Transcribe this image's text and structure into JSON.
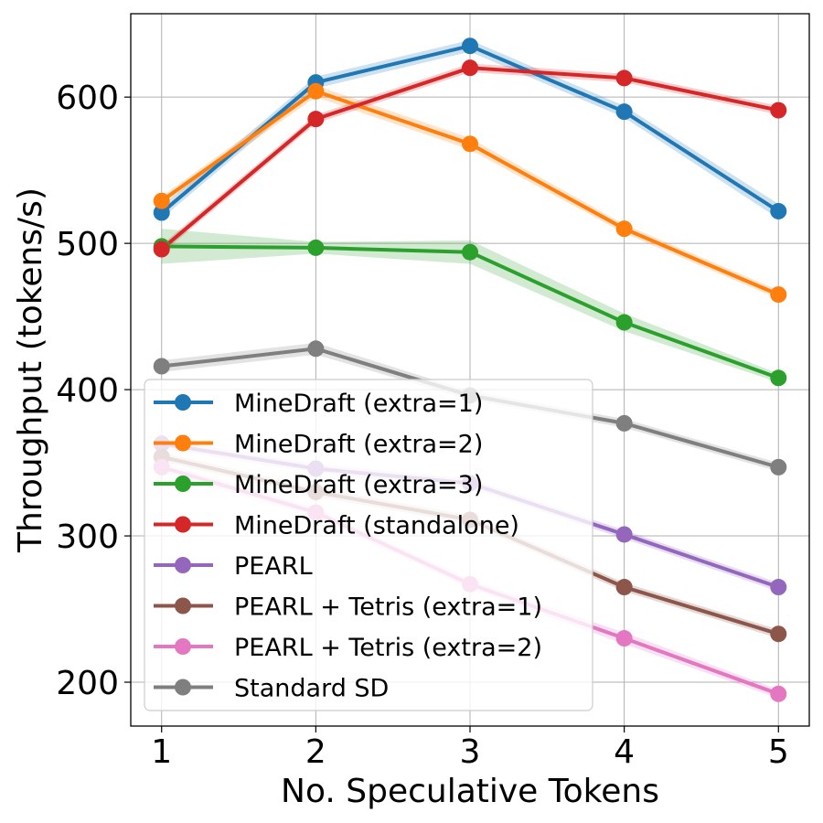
{
  "chart_data": {
    "type": "line",
    "title": "",
    "xlabel": "No. Speculative Tokens",
    "ylabel": "Throughput (tokens/s)",
    "x": [
      1,
      2,
      3,
      4,
      5
    ],
    "xlim": [
      0.8,
      5.2
    ],
    "ylim": [
      170,
      657
    ],
    "x_ticks": [
      "1",
      "2",
      "3",
      "4",
      "5"
    ],
    "y_ticks": [
      "200",
      "300",
      "400",
      "500",
      "600"
    ],
    "grid": true,
    "legend_position": "lower-left",
    "series": [
      {
        "name": "MineDraft (extra=1)",
        "color": "#1f77b4",
        "values": [
          521,
          610,
          635,
          590,
          522
        ],
        "band": [
          4,
          4,
          4,
          4,
          5
        ]
      },
      {
        "name": "MineDraft (extra=2)",
        "color": "#ff7f0e",
        "values": [
          529,
          604,
          568,
          510,
          465
        ],
        "band": [
          3,
          4,
          4,
          3,
          3
        ]
      },
      {
        "name": "MineDraft (extra=3)",
        "color": "#2ca02c",
        "values": [
          498,
          497,
          494,
          446,
          408
        ],
        "band": [
          12,
          4,
          8,
          6,
          3
        ]
      },
      {
        "name": "MineDraft (standalone)",
        "color": "#d62728",
        "values": [
          496,
          585,
          620,
          613,
          591
        ],
        "band": [
          3,
          3,
          3,
          3,
          3
        ]
      },
      {
        "name": "PEARL",
        "color": "#9467bd",
        "values": [
          363,
          346,
          336,
          301,
          265
        ],
        "band": [
          3,
          3,
          3,
          3,
          3
        ]
      },
      {
        "name": "PEARL + Tetris (extra=1)",
        "color": "#8c564b",
        "values": [
          354,
          330,
          311,
          265,
          233
        ],
        "band": [
          3,
          3,
          3,
          3,
          3
        ]
      },
      {
        "name": "PEARL + Tetris (extra=2)",
        "color": "#e377c2",
        "values": [
          347,
          316,
          267,
          230,
          192
        ],
        "band": [
          3,
          3,
          3,
          4,
          3
        ]
      },
      {
        "name": "Standard SD",
        "color": "#7f7f7f",
        "values": [
          416,
          428,
          396,
          377,
          347
        ],
        "band": [
          4,
          4,
          3,
          3,
          3
        ]
      }
    ]
  }
}
